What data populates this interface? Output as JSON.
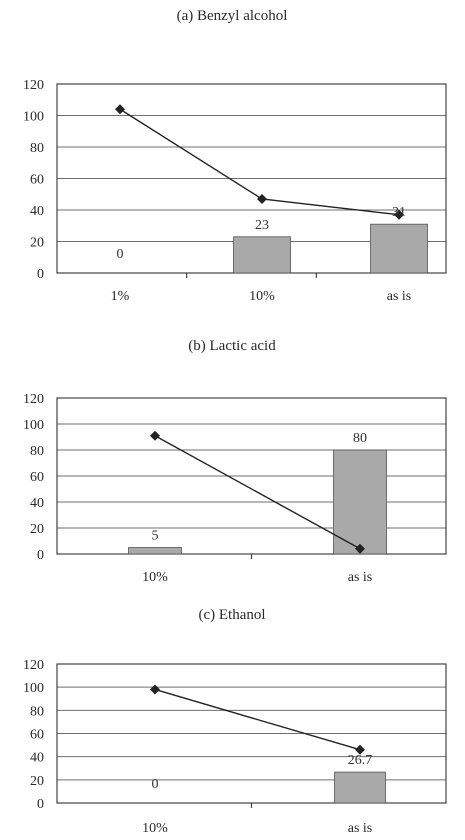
{
  "chart_data": [
    {
      "type": "bar+line",
      "title": "(a) Benzyl alcohol",
      "categories": [
        "1%",
        "10%",
        "as is"
      ],
      "ylim": [
        0,
        120
      ],
      "yticks": [
        0,
        20,
        40,
        60,
        80,
        100,
        120
      ],
      "grid": true,
      "series": [
        {
          "kind": "bar",
          "values": [
            0,
            23,
            31
          ],
          "labels": [
            "0",
            "23",
            "31"
          ]
        },
        {
          "kind": "line",
          "values": [
            104,
            47,
            37
          ]
        }
      ]
    },
    {
      "type": "bar+line",
      "title": "(b) Lactic acid",
      "categories": [
        "10%",
        "as is"
      ],
      "ylim": [
        0,
        120
      ],
      "yticks": [
        0,
        20,
        40,
        60,
        80,
        100,
        120
      ],
      "grid": true,
      "series": [
        {
          "kind": "bar",
          "values": [
            5,
            80
          ],
          "labels": [
            "5",
            "80"
          ]
        },
        {
          "kind": "line",
          "values": [
            91,
            4
          ]
        }
      ]
    },
    {
      "type": "bar+line",
      "title": "(c) Ethanol",
      "categories": [
        "10%",
        "as is"
      ],
      "ylim": [
        0,
        120
      ],
      "yticks": [
        0,
        20,
        40,
        60,
        80,
        100,
        120
      ],
      "grid": true,
      "series": [
        {
          "kind": "bar",
          "values": [
            0,
            26.7
          ],
          "labels": [
            "0",
            "26.7"
          ]
        },
        {
          "kind": "line",
          "values": [
            98,
            46
          ]
        }
      ]
    }
  ]
}
